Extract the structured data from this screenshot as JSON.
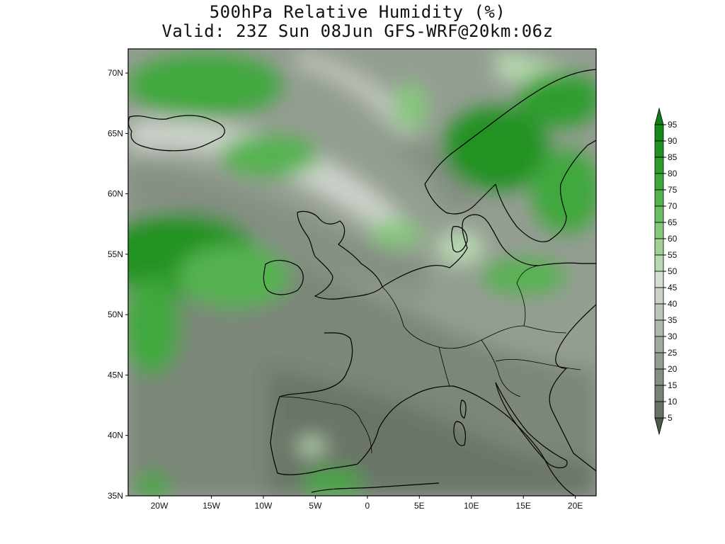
{
  "title": {
    "line1": "500hPa Relative Humidity (%)",
    "line2": "Valid: 23Z Sun 08Jun GFS-WRF@20km:06z"
  },
  "map": {
    "projection": "lat-lon",
    "lon_range": [
      -23,
      22
    ],
    "lat_range": [
      35,
      72
    ],
    "lat_ticks": [
      "35N",
      "40N",
      "45N",
      "50N",
      "55N",
      "60N",
      "65N",
      "70N"
    ],
    "lon_ticks": [
      "20W",
      "15W",
      "10W",
      "5W",
      "0",
      "5E",
      "10E",
      "15E",
      "20E"
    ],
    "background_field": "500hPa relative humidity (%)"
  },
  "colorbar": {
    "levels": [
      "5",
      "10",
      "15",
      "20",
      "25",
      "30",
      "35",
      "40",
      "45",
      "50",
      "55",
      "60",
      "65",
      "70",
      "75",
      "80",
      "85",
      "90",
      "95"
    ],
    "colors": [
      "#5a6658",
      "#687365",
      "#778174",
      "#858f83",
      "#949d92",
      "#a2aaa0",
      "#b0b8ae",
      "#bec5bc",
      "#cbd2c9",
      "#d6ddd3",
      "#b8d8b0",
      "#9fd096",
      "#86c77d",
      "#6dbd65",
      "#55b34f",
      "#3fa83c",
      "#2e9d2e",
      "#209223",
      "#158a1a"
    ],
    "arrow_low_color": "#4e5a4c",
    "arrow_high_color": "#0e7f12"
  }
}
